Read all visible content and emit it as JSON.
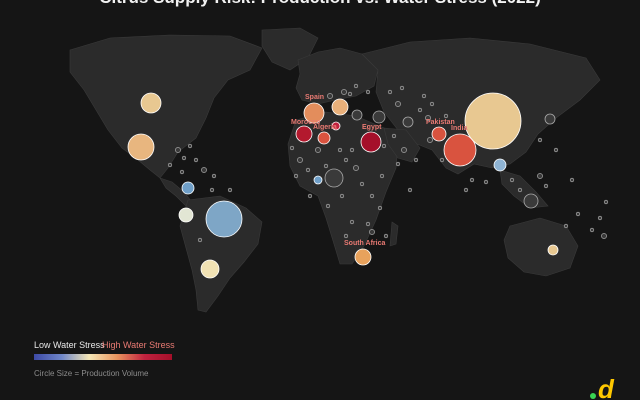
{
  "title": "Citrus Supply Risk: Production vs. Water Stress (2022)",
  "legend": {
    "low_label": "Low Water Stress",
    "high_label": "High Water Stress",
    "size_label": "Circle Size = Production Volume"
  },
  "colors": {
    "background": "#151515",
    "land": "#2b2b2b",
    "low_stress": "#6f9fc8",
    "mid_stress": "#f1e2b4",
    "high_stress": "#b3192e",
    "label": "#e97a73",
    "logo_dot": "#39d353",
    "logo_d": "#ffc800"
  },
  "labeled_countries": [
    "Spain",
    "Morocco",
    "Algeria",
    "Egypt",
    "Pakistan",
    "India",
    "South Africa"
  ],
  "logo": {
    "icon": "d-logo-icon"
  }
}
